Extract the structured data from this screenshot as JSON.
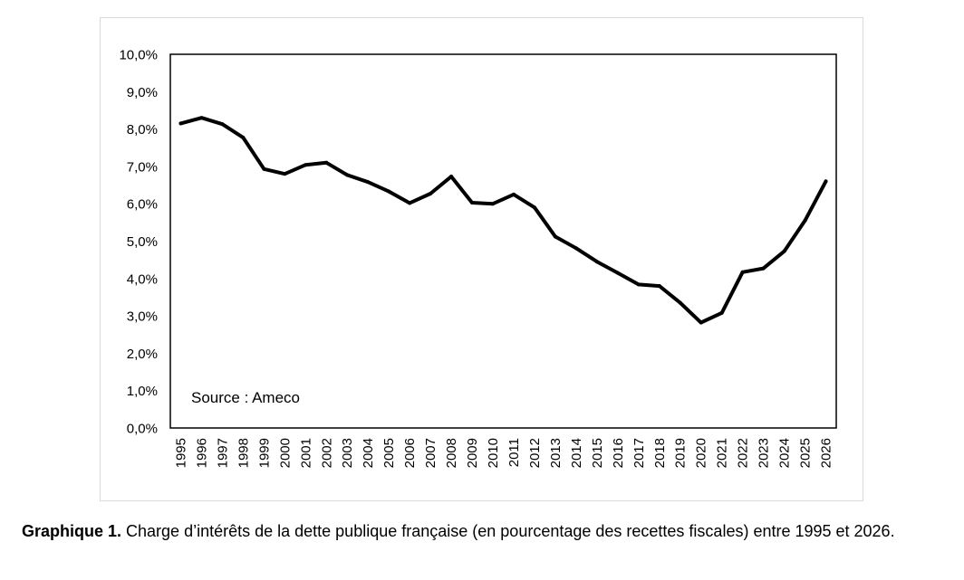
{
  "chart_data": {
    "type": "line",
    "title": "",
    "xlabel": "",
    "ylabel": "",
    "x": [
      "1995",
      "1996",
      "1997",
      "1998",
      "1999",
      "2000",
      "2001",
      "2002",
      "2003",
      "2004",
      "2005",
      "2006",
      "2007",
      "2008",
      "2009",
      "2010",
      "2011",
      "2012",
      "2013",
      "2014",
      "2015",
      "2016",
      "2017",
      "2018",
      "2019",
      "2020",
      "2021",
      "2022",
      "2023",
      "2024",
      "2025",
      "2026"
    ],
    "series": [
      {
        "values": [
          8.15,
          8.3,
          8.13,
          7.77,
          6.93,
          6.8,
          7.04,
          7.1,
          6.77,
          6.58,
          6.33,
          6.02,
          6.27,
          6.73,
          6.03,
          6.0,
          6.25,
          5.9,
          5.12,
          4.81,
          4.45,
          4.15,
          3.84,
          3.8,
          3.35,
          2.82,
          3.08,
          4.17,
          4.27,
          4.73,
          5.55,
          6.6
        ]
      }
    ],
    "ylim": [
      0,
      10
    ],
    "yticks": [
      "0,0%",
      "1,0%",
      "2,0%",
      "3,0%",
      "4,0%",
      "5,0%",
      "6,0%",
      "7,0%",
      "8,0%",
      "9,0%",
      "10,0%"
    ],
    "grid": false,
    "legend": "none",
    "annotation": "Source : Ameco",
    "line_color": "#000000"
  },
  "caption": {
    "label": "Graphique 1.",
    "text": " Charge d’intérêts de la dette publique française (en pourcentage des recettes fiscales) entre 1995 et 2026."
  }
}
